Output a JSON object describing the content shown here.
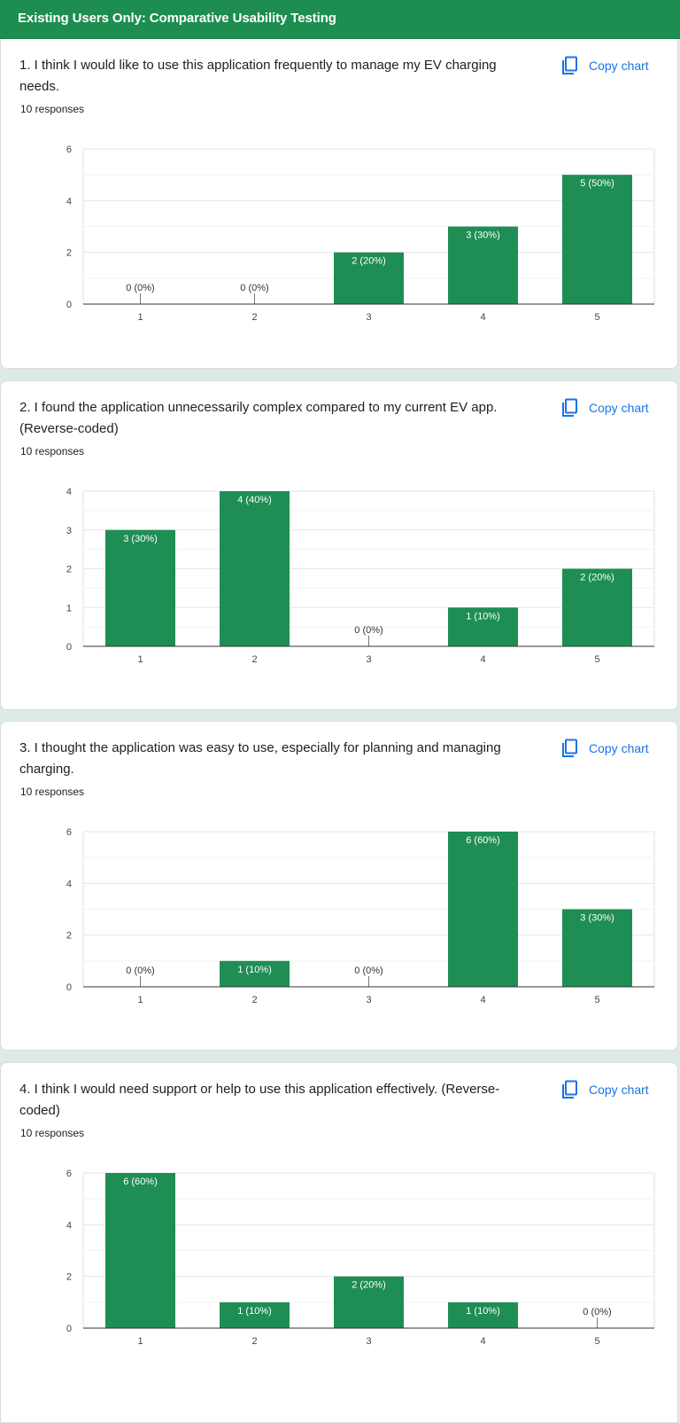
{
  "header": {
    "title": "Existing Users Only: Comparative Usability Testing"
  },
  "copy_label": "Copy chart",
  "colors": {
    "header": "#1e8e50",
    "bar": "#1e8e54",
    "link": "#1a73e8",
    "background": "#dcebe5"
  },
  "questions": [
    {
      "title": "1. I think I would like to use this application frequently to manage my EV charging needs.",
      "responses": "10 responses",
      "chart_data": {
        "type": "bar",
        "categories": [
          "1",
          "2",
          "3",
          "4",
          "5"
        ],
        "values": [
          0,
          0,
          2,
          3,
          5
        ],
        "data_labels": [
          "0 (0%)",
          "0 (0%)",
          "2 (20%)",
          "3 (30%)",
          "5 (50%)"
        ],
        "ylim": [
          0,
          6
        ],
        "yticks": [
          "0",
          "2",
          "4",
          "6"
        ],
        "grid": true
      }
    },
    {
      "title": "2. I found the application unnecessarily complex compared to my current EV app. (Reverse-coded)",
      "responses": "10 responses",
      "chart_data": {
        "type": "bar",
        "categories": [
          "1",
          "2",
          "3",
          "4",
          "5"
        ],
        "values": [
          3,
          4,
          0,
          1,
          2
        ],
        "data_labels": [
          "3 (30%)",
          "4 (40%)",
          "0 (0%)",
          "1 (10%)",
          "2 (20%)"
        ],
        "ylim": [
          0,
          4
        ],
        "yticks": [
          "0",
          "1",
          "2",
          "3",
          "4"
        ],
        "grid": true
      }
    },
    {
      "title": "3. I thought the application was easy to use, especially for planning and managing charging.",
      "responses": "10 responses",
      "chart_data": {
        "type": "bar",
        "categories": [
          "1",
          "2",
          "3",
          "4",
          "5"
        ],
        "values": [
          0,
          1,
          0,
          6,
          3
        ],
        "data_labels": [
          "0 (0%)",
          "1 (10%)",
          "0 (0%)",
          "6 (60%)",
          "3 (30%)"
        ],
        "ylim": [
          0,
          6
        ],
        "yticks": [
          "0",
          "2",
          "4",
          "6"
        ],
        "grid": true
      }
    },
    {
      "title": "4. I think I would need support or help to use this application effectively. (Reverse-coded)",
      "responses": "10 responses",
      "chart_data": {
        "type": "bar",
        "categories": [
          "1",
          "2",
          "3",
          "4",
          "5"
        ],
        "values": [
          6,
          1,
          2,
          1,
          0
        ],
        "data_labels": [
          "6 (60%)",
          "1 (10%)",
          "2 (20%)",
          "1 (10%)",
          "0 (0%)"
        ],
        "ylim": [
          0,
          6
        ],
        "yticks": [
          "0",
          "2",
          "4",
          "6"
        ],
        "grid": true
      }
    }
  ]
}
